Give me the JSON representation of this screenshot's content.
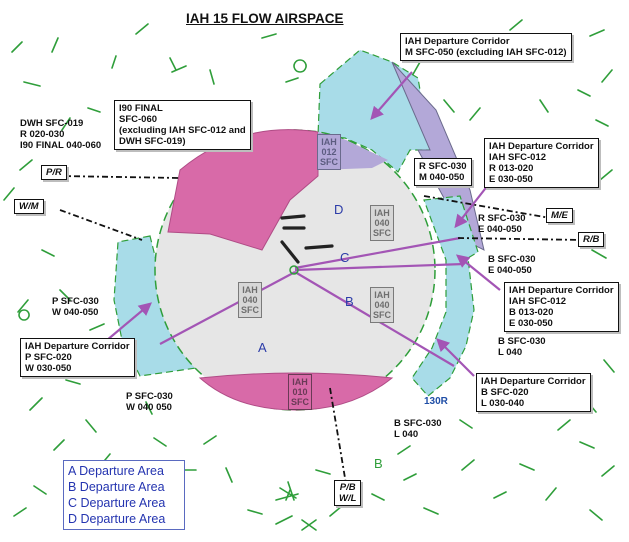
{
  "title": "IAH 15 FLOW AIRSPACE",
  "colors": {
    "circle_gray": "#e6e6e6",
    "pink": "#d86aa8",
    "light_blue": "#a8dce8",
    "lavender": "#b3a8d8",
    "route_purple": "#a355b5",
    "grid_green": "#2f9e3a",
    "legend_blue": "#2434b0"
  },
  "labels": {
    "dwh_info": "DWH SFC-019\nR 020-030\nI90 FINAL 040-060",
    "r_sfc_e": "R SFC-030\nE 040-050",
    "b_sfc_e": "B SFC-030\nE 040-050",
    "p_sfc_w": "P SFC-030\nW 040-050",
    "b_sfc_l_right": "B SFC-030\nL 040",
    "p_sfc_w_bottom": "P SFC-030\nW 040 050",
    "b_sfc_l_bottom": "B SFC-030\nL 040",
    "runway": "130R"
  },
  "boxes": {
    "i90_final": [
      "I90 FINAL",
      "SFC-060",
      "(excluding IAH SFC-012 and",
      "DWH SFC-019)"
    ],
    "corridor_m": [
      "IAH Departure Corridor",
      "M SFC-050 (excluding IAH SFC-012)"
    ],
    "r_sfc_m": [
      "R SFC-030",
      "M 040-050"
    ],
    "corridor_r_e": [
      "IAH Departure Corridor",
      "IAH SFC-012",
      "R 013-020",
      "E 030-050"
    ],
    "corridor_b_e": [
      "IAH Departure Corridor",
      "IAH SFC-012",
      "B 013-020",
      "E 030-050"
    ],
    "corridor_p_w": [
      "IAH Departure Corridor",
      "P SFC-020",
      "W 030-050"
    ],
    "corridor_b_l": [
      "IAH Departure Corridor",
      "B SFC-020",
      "L 030-040"
    ]
  },
  "tags": {
    "p_r": "P/R",
    "w_m": "W/M",
    "m_e": "M/E",
    "r_b": "R/B",
    "p_b": "P/B",
    "w_l": "W/L"
  },
  "centers": {
    "iah_012": [
      "IAH",
      "012",
      "SFC"
    ],
    "iah_040_left": [
      "IAH",
      "040",
      "SFC"
    ],
    "iah_040_upper": [
      "IAH",
      "040",
      "SFC"
    ],
    "iah_040_right": [
      "IAH",
      "040",
      "SFC"
    ],
    "iah_010": [
      "IAH",
      "010",
      "SFC"
    ]
  },
  "areas": {
    "a": "A",
    "b": "B",
    "c": "C",
    "d": "D",
    "b_green": "B"
  },
  "legend": [
    "A  Departure Area",
    "B  Departure Area",
    "C  Departure Area",
    "D  Departure Area"
  ]
}
